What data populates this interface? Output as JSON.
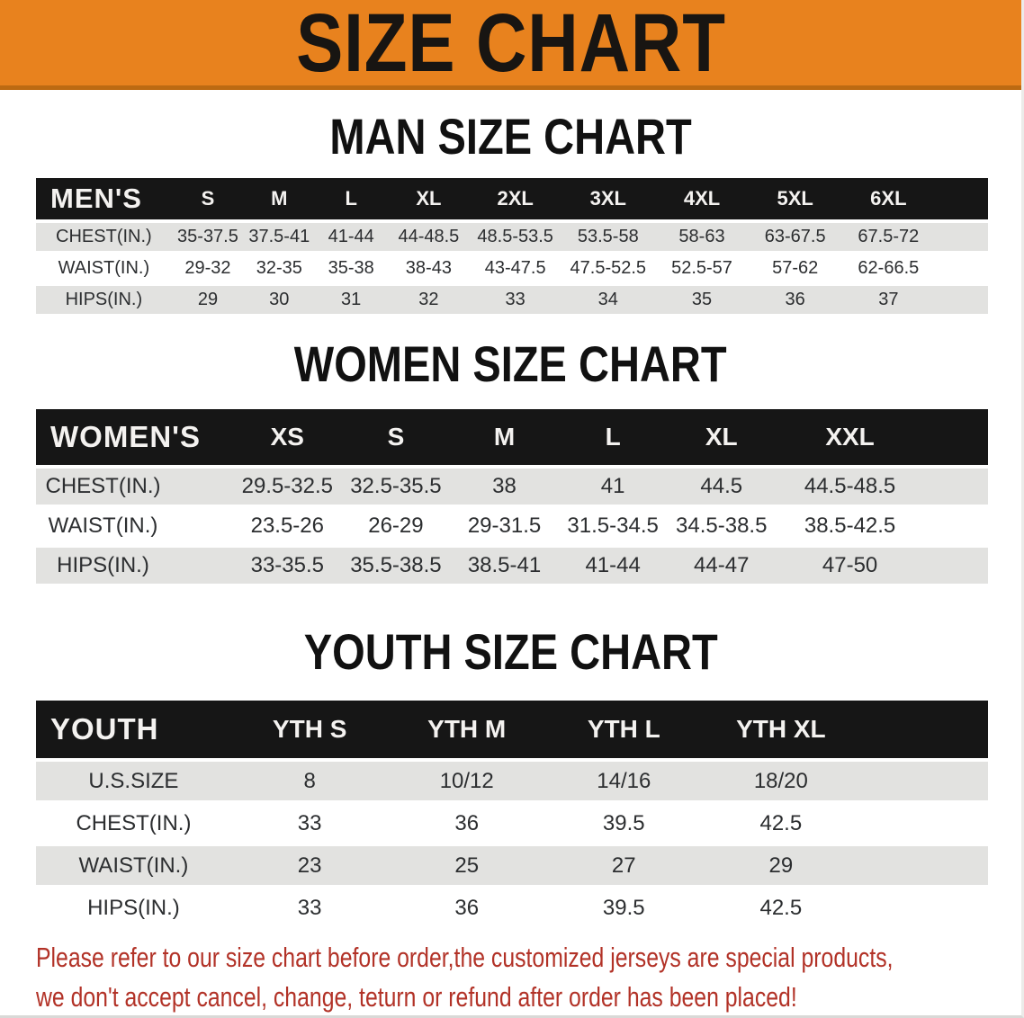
{
  "banner": {
    "title": "SIZE CHART"
  },
  "sections": [
    {
      "heading": "MAN SIZE CHART",
      "table": {
        "corner_label": "MEN'S",
        "columns": [
          "S",
          "M",
          "L",
          "XL",
          "2XL",
          "3XL",
          "4XL",
          "5XL",
          "6XL"
        ],
        "rows": [
          {
            "label": "CHEST(IN.)",
            "values": [
              "35-37.5",
              "37.5-41",
              "41-44",
              "44-48.5",
              "48.5-53.5",
              "53.5-58",
              "58-63",
              "63-67.5",
              "67.5-72"
            ]
          },
          {
            "label": "WAIST(IN.)",
            "values": [
              "29-32",
              "32-35",
              "35-38",
              "38-43",
              "43-47.5",
              "47.5-52.5",
              "52.5-57",
              "57-62",
              "62-66.5"
            ]
          },
          {
            "label": "HIPS(IN.)",
            "values": [
              "29",
              "30",
              "31",
              "32",
              "33",
              "34",
              "35",
              "36",
              "37"
            ]
          }
        ]
      }
    },
    {
      "heading": "WOMEN SIZE CHART",
      "table": {
        "corner_label": "WOMEN'S",
        "columns": [
          "XS",
          "S",
          "M",
          "L",
          "XL",
          "XXL"
        ],
        "rows": [
          {
            "label": "CHEST(IN.)",
            "values": [
              "29.5-32.5",
              "32.5-35.5",
              "38",
              "41",
              "44.5",
              "44.5-48.5"
            ]
          },
          {
            "label": "WAIST(IN.)",
            "values": [
              "23.5-26",
              "26-29",
              "29-31.5",
              "31.5-34.5",
              "34.5-38.5",
              "38.5-42.5"
            ]
          },
          {
            "label": "HIPS(IN.)",
            "values": [
              "33-35.5",
              "35.5-38.5",
              "38.5-41",
              "41-44",
              "44-47",
              "47-50"
            ]
          }
        ]
      }
    },
    {
      "heading": "YOUTH SIZE CHART",
      "table": {
        "corner_label": "YOUTH",
        "columns": [
          "YTH S",
          "YTH M",
          "YTH L",
          "YTH XL"
        ],
        "rows": [
          {
            "label": "U.S.SIZE",
            "values": [
              "8",
              "10/12",
              "14/16",
              "18/20"
            ]
          },
          {
            "label": "CHEST(IN.)",
            "values": [
              "33",
              "36",
              "39.5",
              "42.5"
            ]
          },
          {
            "label": "WAIST(IN.)",
            "values": [
              "23",
              "25",
              "27",
              "29"
            ]
          },
          {
            "label": "HIPS(IN.)",
            "values": [
              "33",
              "36",
              "39.5",
              "42.5"
            ]
          }
        ]
      }
    }
  ],
  "disclaimer": {
    "line1": "Please refer to our size chart before order,the customized jerseys are special products,",
    "line2": "we don't accept cancel, change, teturn or refund after order has been placed!"
  },
  "colors": {
    "banner_orange": "#E8821E",
    "banner_edge": "#BC6A12",
    "header_black": "#161616",
    "header_text": "#F4F2F0",
    "row_gray": "#E2E2E0",
    "body_text": "#2C2E30",
    "disclaimer_red": "#B23227"
  }
}
